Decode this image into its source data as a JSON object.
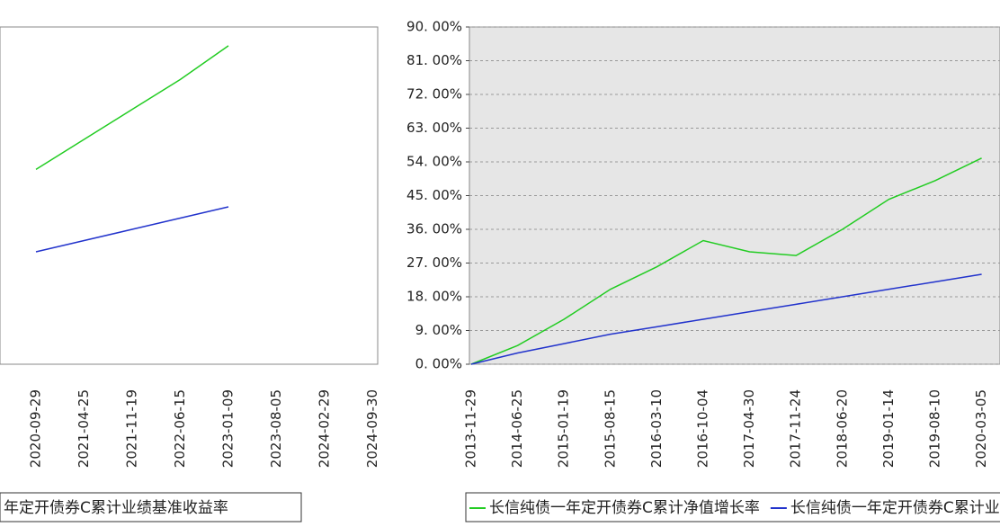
{
  "chart_data": [
    {
      "type": "line",
      "categories": [
        "2020-09-29",
        "2021-04-25",
        "2021-11-19",
        "2022-06-15",
        "2023-01-09",
        "2023-08-05",
        "2024-02-29",
        "2024-09-30"
      ],
      "series": [
        {
          "name": "年定开债券C累计净值增长率",
          "color": "#22cc22",
          "values": [
            52,
            60,
            68,
            76,
            85,
            null,
            null,
            null
          ]
        },
        {
          "name": "年定开债券C累计业绩基准收益率",
          "color": "#2233cc",
          "values": [
            30,
            33,
            36,
            39,
            42,
            null,
            null,
            null
          ]
        }
      ],
      "ylim": [
        0,
        90
      ],
      "grid": true,
      "legend_series": [
        1
      ]
    },
    {
      "type": "line",
      "categories": [
        "2013-11-29",
        "2014-06-25",
        "2015-01-19",
        "2015-08-15",
        "2016-03-10",
        "2016-10-04",
        "2017-04-30",
        "2017-11-24",
        "2018-06-20",
        "2019-01-14",
        "2019-08-10",
        "2020-03-05"
      ],
      "series": [
        {
          "name": "长信纯债一年定开债券C累计净值增长率",
          "color": "#22cc22",
          "values": [
            0,
            5,
            12,
            20,
            26,
            33,
            30,
            29,
            36,
            44,
            49,
            55
          ]
        },
        {
          "name": "长信纯债一年定开债券C累计业绩基准收益率",
          "color": "#2233cc",
          "values": [
            0,
            3,
            5.5,
            8,
            10,
            12,
            14,
            16,
            18,
            20,
            22,
            24
          ]
        }
      ],
      "ylim": [
        0,
        90
      ],
      "yticks": [
        {
          "value": 0,
          "label": "0. 00%"
        },
        {
          "value": 9,
          "label": "9. 00%"
        },
        {
          "value": 18,
          "label": "18. 00%"
        },
        {
          "value": 27,
          "label": "27. 00%"
        },
        {
          "value": 36,
          "label": "36. 00%"
        },
        {
          "value": 45,
          "label": "45. 00%"
        },
        {
          "value": 54,
          "label": "54. 00%"
        },
        {
          "value": 63,
          "label": "63. 00%"
        },
        {
          "value": 72,
          "label": "72. 00%"
        },
        {
          "value": 81,
          "label": "81. 00%"
        },
        {
          "value": 90,
          "label": "90. 00%"
        }
      ],
      "grid": true,
      "legend_series": [
        0,
        1
      ]
    }
  ]
}
